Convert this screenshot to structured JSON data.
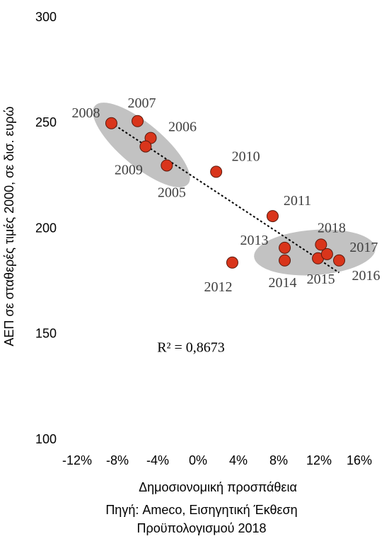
{
  "chart_data": {
    "type": "scatter",
    "x_label": "Δημοσιονομική προσπάθεια",
    "y_label": "ΑΕΠ σε σταθερές τιμές 2000, σε δισ. ευρώ",
    "annotation": "R² = 0,8673",
    "source": [
      "Πηγή: Ameco, Εισηγητική Έκθεση",
      "Προϋπολογισμού 2018"
    ],
    "labels": [
      "2005",
      "2006",
      "2007",
      "2008",
      "2009",
      "2010",
      "2011",
      "2012",
      "2013",
      "2014",
      "2015",
      "2016",
      "2017",
      "2018"
    ],
    "x": [
      -3.1,
      -4.7,
      -6.0,
      -8.6,
      -5.2,
      1.8,
      7.4,
      3.4,
      8.6,
      8.6,
      11.9,
      14.0,
      12.8,
      12.2
    ],
    "values": [
      230,
      243,
      251,
      250,
      239,
      227,
      206,
      184,
      191,
      185,
      186,
      185,
      188,
      192.5
    ],
    "color": "#d9351b",
    "trendline": true,
    "xlim": [
      -12,
      16
    ],
    "xticks": [
      {
        "value": -12,
        "label": "-12%"
      },
      {
        "value": -8,
        "label": "-8%"
      },
      {
        "value": -4,
        "label": "-4%"
      },
      {
        "value": 0,
        "label": "0%"
      },
      {
        "value": 4,
        "label": "4%"
      },
      {
        "value": 8,
        "label": "8%"
      },
      {
        "value": 12,
        "label": "12%"
      },
      {
        "value": 16,
        "label": "16%"
      }
    ],
    "ylim": [
      100,
      300
    ],
    "yticks": [
      100,
      150,
      200,
      250,
      300
    ]
  }
}
